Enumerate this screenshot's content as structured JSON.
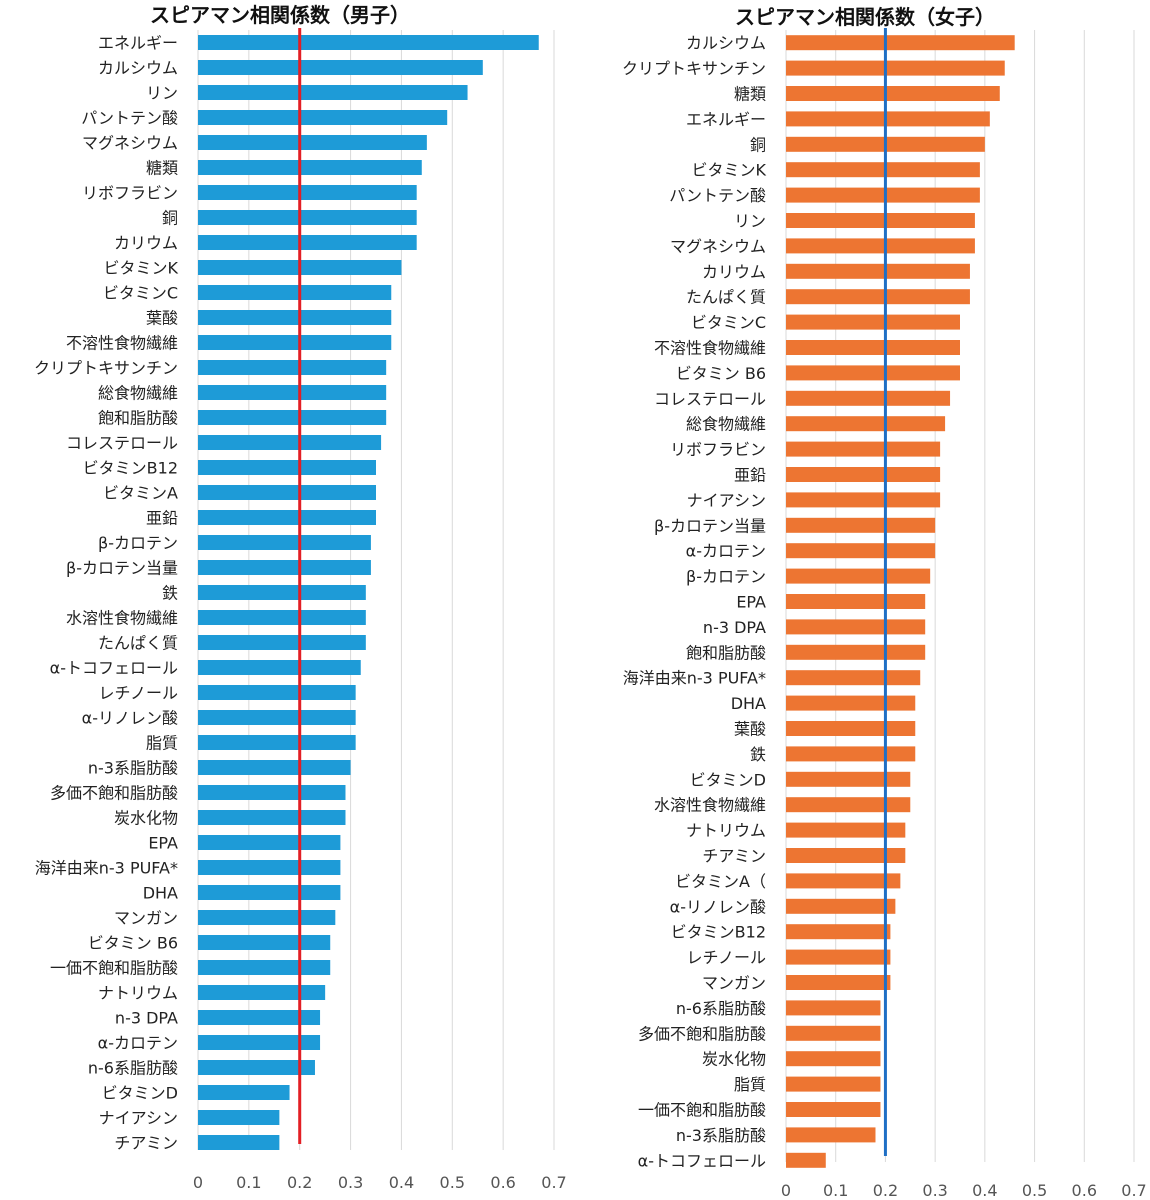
{
  "chart_data": [
    {
      "type": "bar",
      "orientation": "horizontal",
      "title": "スピアマン相関係数（男子）",
      "xlim": [
        0,
        0.7
      ],
      "xticks": [
        "0",
        "0.1",
        "0.2",
        "0.3",
        "0.4",
        "0.5",
        "0.6",
        "0.7"
      ],
      "grid": true,
      "bar_color": "#1e9bd7",
      "reference_line": {
        "value": 0.2,
        "color": "#e31e24"
      },
      "categories": [
        "エネルギー",
        "カルシウム",
        "リン",
        "パントテン酸",
        "マグネシウム",
        "糖類",
        "リボフラビン",
        "銅",
        "カリウム",
        "ビタミンK",
        "ビタミンC",
        "葉酸",
        "不溶性食物繊維",
        "クリプトキサンチン",
        "総食物繊維",
        "飽和脂肪酸",
        "コレステロール",
        "ビタミンB12",
        "ビタミンA",
        "亜鉛",
        "β-カロテン",
        "β-カロテン当量",
        "鉄",
        "水溶性食物繊維",
        "たんぱく質",
        "α-トコフェロール",
        "レチノール",
        "α-リノレン酸",
        "脂質",
        "n-3系脂肪酸",
        "多価不飽和脂肪酸",
        "炭水化物",
        "EPA",
        "海洋由来n-3 PUFA*",
        "DHA",
        "マンガン",
        "ビタミン B6",
        "一価不飽和脂肪酸",
        "ナトリウム",
        "n-3 DPA",
        "α-カロテン",
        "n-6系脂肪酸",
        "ビタミンD",
        "ナイアシン",
        "チアミン"
      ],
      "values": [
        0.67,
        0.56,
        0.53,
        0.49,
        0.45,
        0.44,
        0.43,
        0.43,
        0.43,
        0.4,
        0.38,
        0.38,
        0.38,
        0.37,
        0.37,
        0.37,
        0.36,
        0.35,
        0.35,
        0.35,
        0.34,
        0.34,
        0.33,
        0.33,
        0.33,
        0.32,
        0.31,
        0.31,
        0.31,
        0.3,
        0.29,
        0.29,
        0.28,
        0.28,
        0.28,
        0.27,
        0.26,
        0.26,
        0.25,
        0.24,
        0.24,
        0.23,
        0.18,
        0.16,
        0.16
      ]
    },
    {
      "type": "bar",
      "orientation": "horizontal",
      "title": "スピアマン相関係数（女子）",
      "xlim": [
        0,
        0.7
      ],
      "xticks": [
        "0",
        "0.1",
        "0.2",
        "0.3",
        "0.4",
        "0.5",
        "0.6",
        "0.7"
      ],
      "grid": true,
      "bar_color": "#ed7532",
      "reference_line": {
        "value": 0.2,
        "color": "#1f6fc5"
      },
      "categories": [
        "カルシウム",
        "クリプトキサンチン",
        "糖類",
        "エネルギー",
        "銅",
        "ビタミンK",
        "パントテン酸",
        "リン",
        "マグネシウム",
        "カリウム",
        "たんぱく質",
        "ビタミンC",
        "不溶性食物繊維",
        "ビタミン B6",
        "コレステロール",
        "総食物繊維",
        "リボフラビン",
        "亜鉛",
        "ナイアシン",
        "β-カロテン当量",
        "α-カロテン",
        "β-カロテン",
        "EPA",
        "n-3 DPA",
        "飽和脂肪酸",
        "海洋由来n-3 PUFA*",
        "DHA",
        "葉酸",
        "鉄",
        "ビタミンD",
        "水溶性食物繊維",
        "ナトリウム",
        "チアミン",
        "ビタミンA（",
        "α-リノレン酸",
        "ビタミンB12",
        "レチノール",
        "マンガン",
        "n-6系脂肪酸",
        "多価不飽和脂肪酸",
        "炭水化物",
        "脂質",
        "一価不飽和脂肪酸",
        "n-3系脂肪酸",
        "α-トコフェロール"
      ],
      "values": [
        0.46,
        0.44,
        0.43,
        0.41,
        0.4,
        0.39,
        0.39,
        0.38,
        0.38,
        0.37,
        0.37,
        0.35,
        0.35,
        0.35,
        0.33,
        0.32,
        0.31,
        0.31,
        0.31,
        0.3,
        0.3,
        0.29,
        0.28,
        0.28,
        0.28,
        0.27,
        0.26,
        0.26,
        0.26,
        0.25,
        0.25,
        0.24,
        0.24,
        0.23,
        0.22,
        0.21,
        0.21,
        0.21,
        0.19,
        0.19,
        0.19,
        0.19,
        0.19,
        0.18,
        0.08
      ]
    }
  ]
}
